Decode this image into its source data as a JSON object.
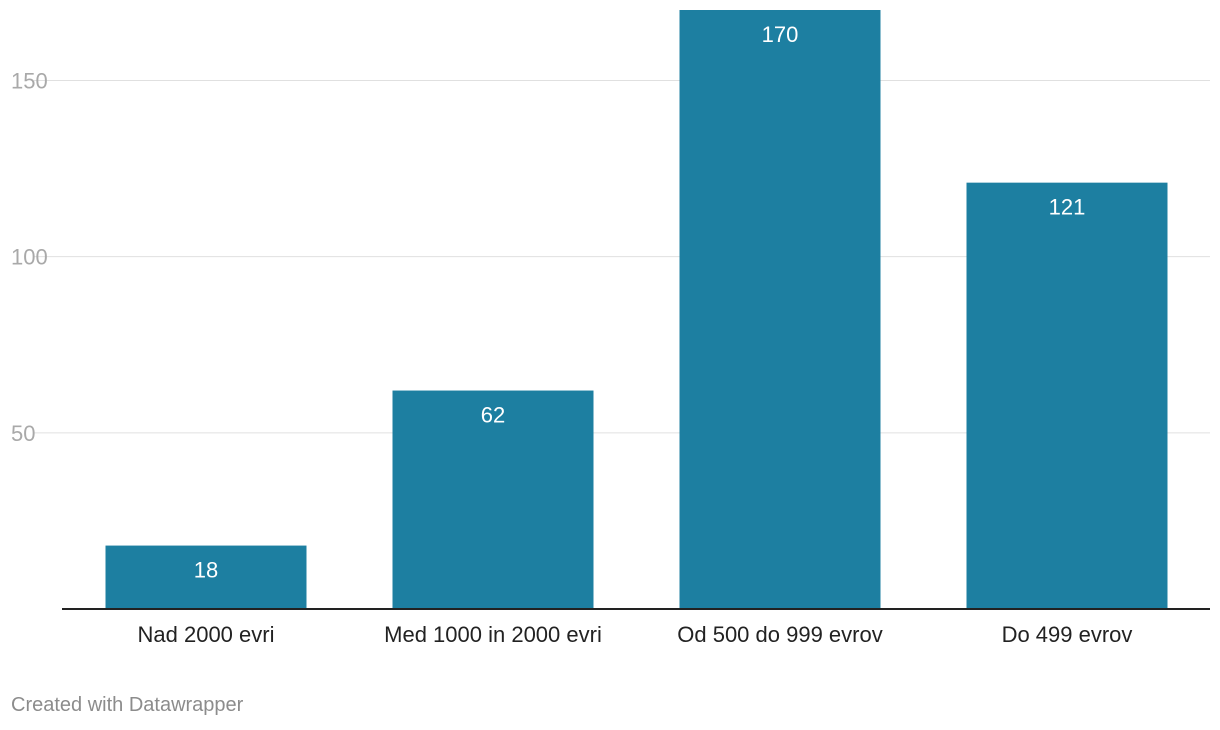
{
  "chart_data": {
    "type": "bar",
    "title": "",
    "xlabel": "",
    "ylabel": "",
    "categories": [
      "Nad 2000 evri",
      "Med 1000 in 2000 evri",
      "Od 500 do 999 evrov",
      "Do 499 evrov"
    ],
    "values": [
      18,
      62,
      170,
      121
    ],
    "ylim": [
      0,
      170
    ],
    "yticks": [
      50,
      100,
      150
    ],
    "grid": true,
    "bar_color": "#1d7fa1",
    "data_labels": [
      "18",
      "62",
      "170",
      "121"
    ]
  },
  "footer": {
    "credit": "Created with Datawrapper"
  }
}
